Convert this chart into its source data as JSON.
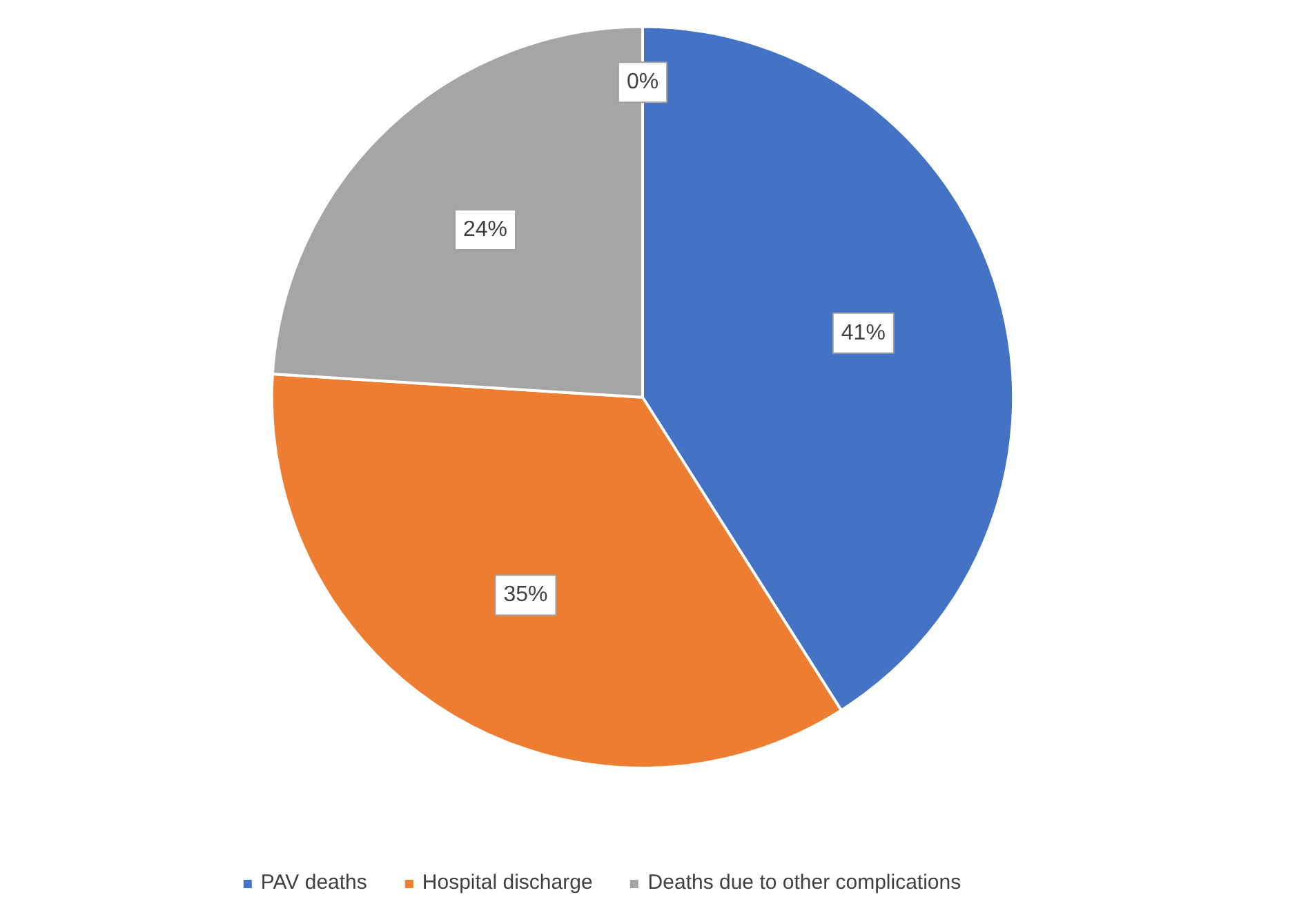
{
  "chart_data": {
    "type": "pie",
    "categories": [
      "PAV deaths",
      "Hospital discharge",
      "Deaths due to other complications",
      null
    ],
    "values": [
      41,
      35,
      24,
      0
    ],
    "colors": [
      "#4472c4",
      "#ed7d31",
      "#a5a5a5",
      "#ffc000"
    ],
    "value_labels": [
      "41%",
      "35%",
      "24%",
      "0%"
    ],
    "legend": "bottom"
  }
}
